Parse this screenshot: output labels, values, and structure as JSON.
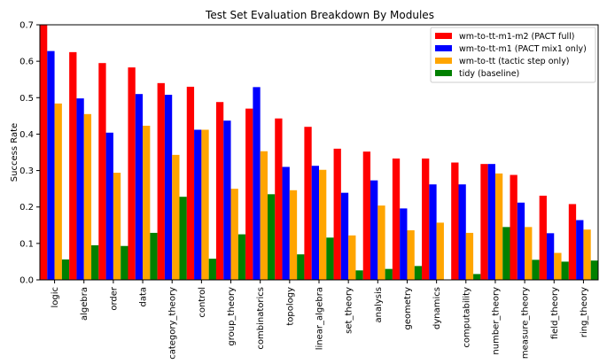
{
  "chart_data": {
    "type": "bar",
    "title": "Test Set Evaluation Breakdown By Modules",
    "xlabel": "",
    "ylabel": "Success Rate",
    "ylim": [
      0,
      0.7
    ],
    "yticks": [
      "0.0",
      "0.1",
      "0.2",
      "0.3",
      "0.4",
      "0.5",
      "0.6",
      "0.7"
    ],
    "grid": false,
    "legend_position": "top-right",
    "categories": [
      "logic",
      "algebra",
      "order",
      "data",
      "category_theory",
      "control",
      "group_theory",
      "combinatorics",
      "topology",
      "linear_algebra",
      "set_theory",
      "analysis",
      "geometry",
      "dynamics",
      "computability",
      "number_theory",
      "measure_theory",
      "field_theory",
      "ring_theory"
    ],
    "series": [
      {
        "name": "wm-to-tt-m1-m2 (PACT full)",
        "color": "#ff0000",
        "values": [
          0.71,
          0.625,
          0.595,
          0.583,
          0.54,
          0.53,
          0.488,
          0.47,
          0.443,
          0.42,
          0.36,
          0.352,
          0.333,
          0.333,
          0.322,
          0.318,
          0.288,
          0.231,
          0.208
        ]
      },
      {
        "name": "wm-to-tt-m1 (PACT mix1 only)",
        "color": "#0000ff",
        "values": [
          0.628,
          0.498,
          0.404,
          0.51,
          0.508,
          0.412,
          0.437,
          0.529,
          0.31,
          0.313,
          0.239,
          0.273,
          0.196,
          0.262,
          0.262,
          0.318,
          0.212,
          0.128,
          0.164
        ]
      },
      {
        "name": "wm-to-tt (tactic step only)",
        "color": "#ffa500",
        "values": [
          0.484,
          0.455,
          0.294,
          0.423,
          0.343,
          0.412,
          0.25,
          0.353,
          0.246,
          0.302,
          0.122,
          0.204,
          0.136,
          0.157,
          0.129,
          0.292,
          0.145,
          0.074,
          0.138
        ]
      },
      {
        "name": "tidy (baseline)",
        "color": "#008000",
        "values": [
          0.056,
          0.095,
          0.093,
          0.129,
          0.228,
          0.058,
          0.125,
          0.235,
          0.07,
          0.116,
          0.026,
          0.03,
          0.038,
          0.0,
          0.016,
          0.145,
          0.055,
          0.05,
          0.053
        ]
      }
    ]
  }
}
